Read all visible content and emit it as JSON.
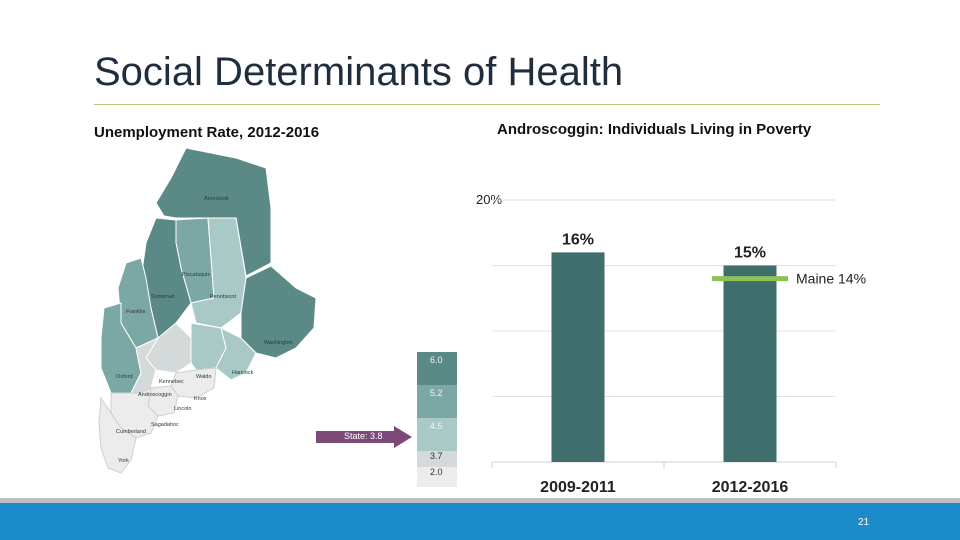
{
  "slide": {
    "title": "Social Determinants of Health",
    "page_number": "21"
  },
  "map": {
    "title": "Unemployment Rate, 2012-2016",
    "counties": [
      "Aroostook",
      "Piscataquis",
      "Penobscot",
      "Somerset",
      "Washington",
      "Franklin",
      "Oxford",
      "Kennebec",
      "Waldo",
      "Hancock",
      "Androscoggin",
      "Lincoln",
      "Knox",
      "Sagadahoc",
      "Cumberland",
      "York"
    ],
    "legend": [
      "6.0",
      "5.2",
      "4.5",
      "3.7",
      "2.0"
    ],
    "state_label": "State: 3.8",
    "colors": {
      "dark": "#5b8a86",
      "mid_dark": "#7ba8a4",
      "mid": "#a9c9c6",
      "light": "#d4d9d9",
      "lightest": "#ececec",
      "arrow": "#7b4a77"
    }
  },
  "chart_data": {
    "type": "bar",
    "title": "Androscoggin: Individuals Living in Poverty",
    "categories": [
      "2009-2011",
      "2012-2016"
    ],
    "values": [
      16,
      15
    ],
    "data_labels": [
      "16%",
      "15%"
    ],
    "ylim": [
      0,
      20
    ],
    "y_tick_label": "20%",
    "reference_line": {
      "label": "Maine 14%",
      "value": 14
    },
    "bar_color": "#3f6e6c",
    "reference_color": "#8dc356",
    "grid": true
  }
}
